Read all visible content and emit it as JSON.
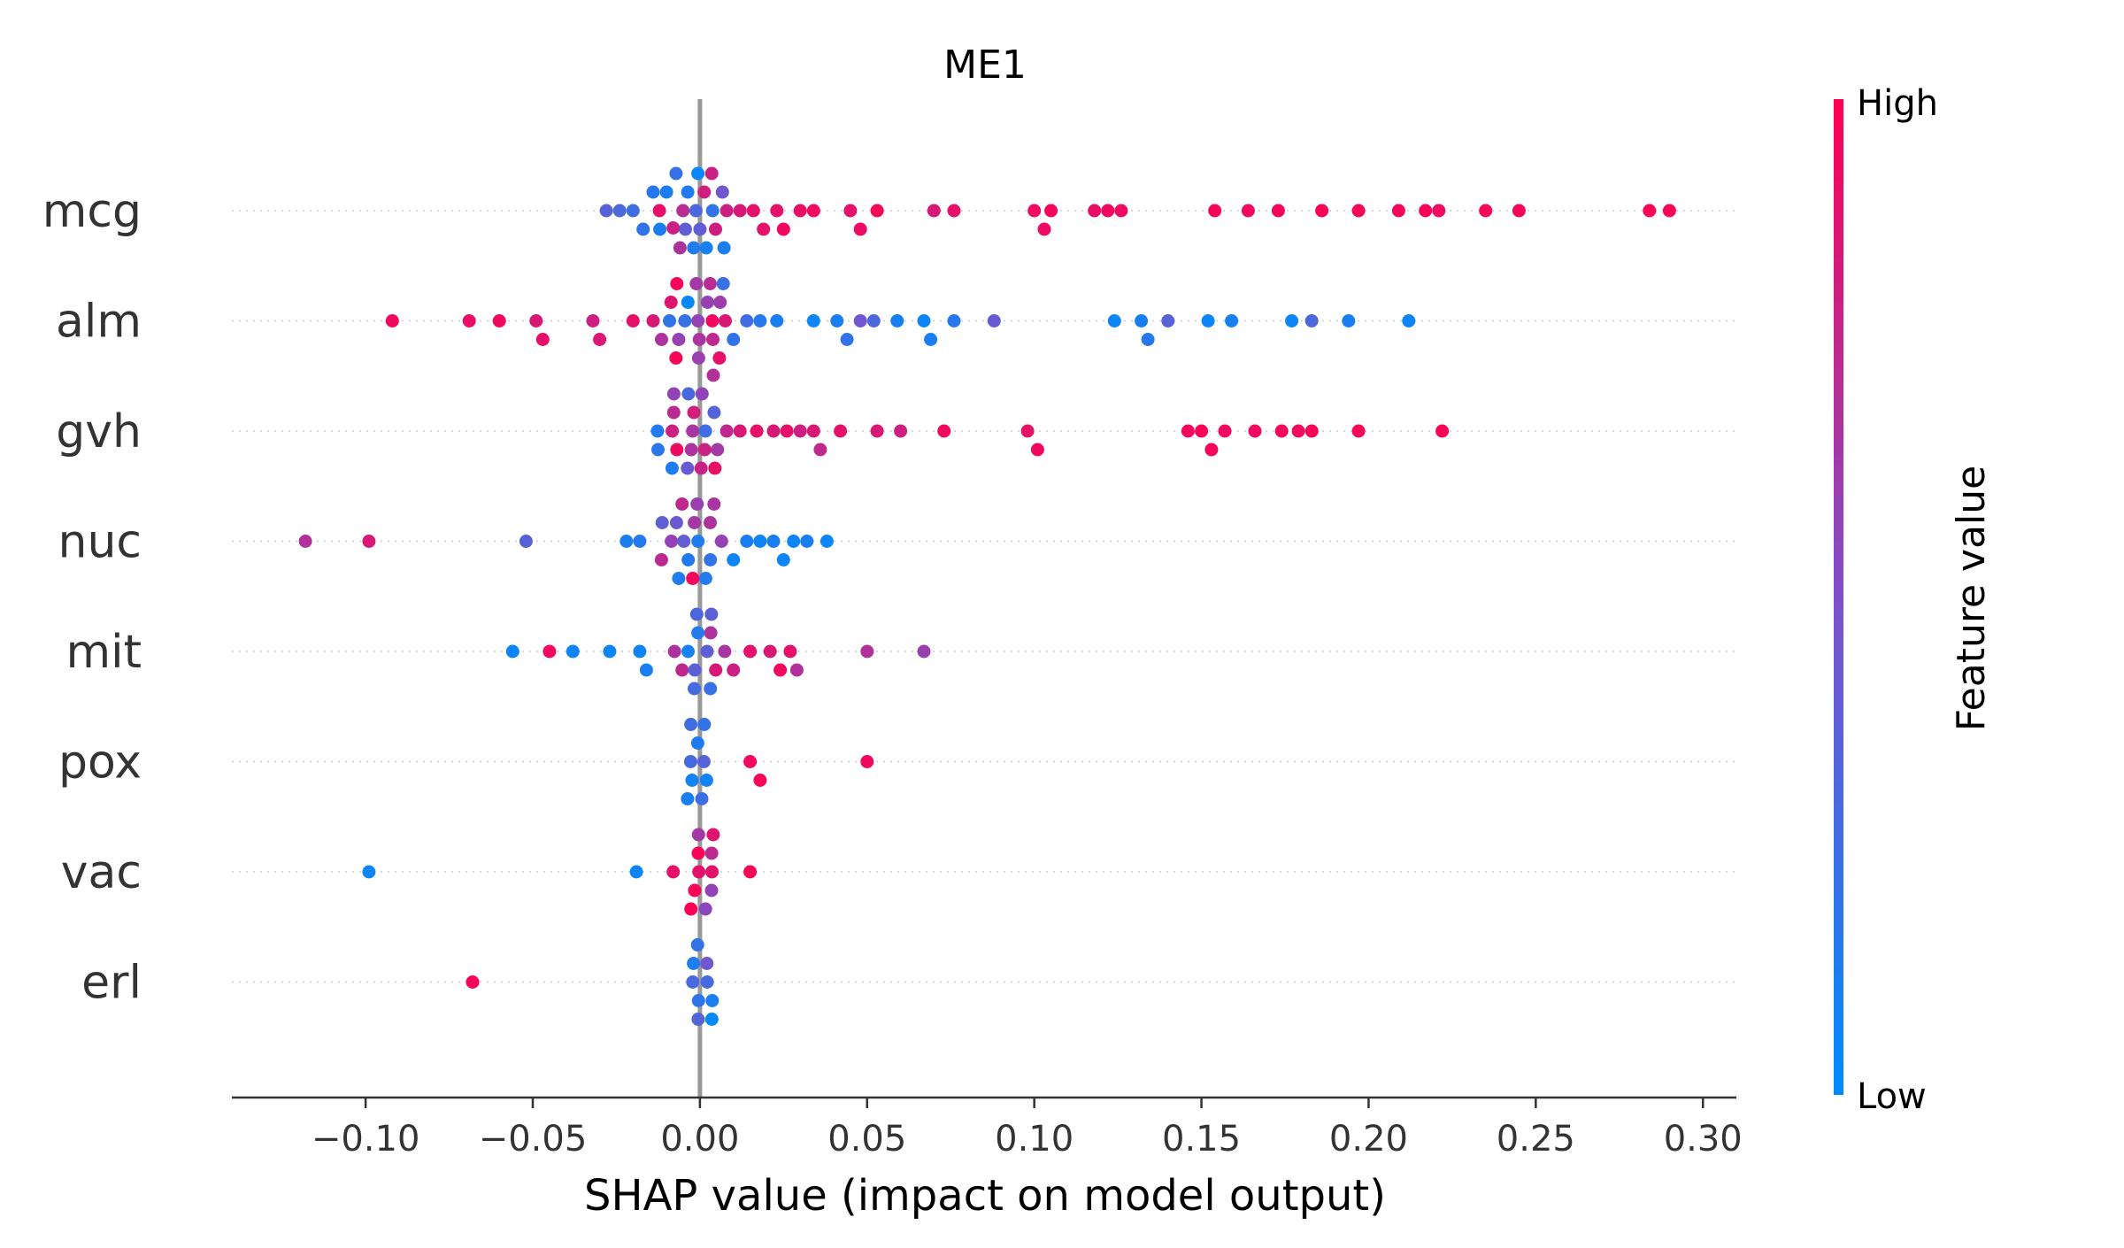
{
  "chart_data": {
    "type": "scatter",
    "subtype": "shap-beeswarm",
    "title": "ME1",
    "xlabel": "SHAP value (impact on model output)",
    "xlim": [
      -0.14,
      0.31
    ],
    "xticks": [
      -0.1,
      -0.05,
      0.0,
      0.05,
      0.1,
      0.15,
      0.2,
      0.25,
      0.3
    ],
    "xtick_labels": [
      "−0.10",
      "−0.05",
      "0.00",
      "0.05",
      "0.10",
      "0.15",
      "0.20",
      "0.25",
      "0.30"
    ],
    "features": [
      "mcg",
      "alm",
      "gvh",
      "nuc",
      "mit",
      "pox",
      "vac",
      "erl"
    ],
    "colorbar": {
      "title": "Feature value",
      "high_label": "High",
      "low_label": "Low",
      "low_color": "#008bfb",
      "mid_color": "#7e50c8",
      "high_color": "#ff0052"
    },
    "zero_line_color": "#999999",
    "series": [
      {
        "feature": "mcg",
        "points": [
          [
            0.023,
            0.9
          ],
          [
            0.025,
            0.95
          ],
          [
            0.03,
            0.92
          ],
          [
            0.034,
            0.95
          ],
          [
            0.045,
            0.9
          ],
          [
            0.048,
            0.93
          ],
          [
            0.053,
            0.97
          ],
          [
            0.07,
            0.85
          ],
          [
            0.076,
            0.9
          ],
          [
            0.1,
            0.95
          ],
          [
            0.103,
            0.93
          ],
          [
            0.105,
            0.96
          ],
          [
            0.118,
            0.92
          ],
          [
            0.122,
            0.95
          ],
          [
            0.126,
            0.93
          ],
          [
            0.154,
            0.97
          ],
          [
            0.164,
            0.95
          ],
          [
            0.173,
            0.96
          ],
          [
            0.186,
            0.98
          ],
          [
            0.197,
            0.97
          ],
          [
            0.209,
            0.96
          ],
          [
            0.217,
            0.98
          ],
          [
            0.221,
            0.95
          ],
          [
            0.235,
            0.97
          ],
          [
            0.245,
            0.96
          ],
          [
            0.284,
            0.98
          ],
          [
            0.29,
            0.97
          ],
          [
            0.008,
            0.8
          ],
          [
            0.012,
            0.85
          ],
          [
            0.016,
            0.9
          ],
          [
            0.019,
            0.9
          ],
          [
            -0.028,
            0.35
          ],
          [
            -0.024,
            0.3
          ],
          [
            -0.02,
            0.25
          ],
          [
            -0.017,
            0.2
          ],
          [
            -0.014,
            0.15
          ],
          [
            -0.012,
            0.1
          ],
          [
            -0.01,
            0.1
          ]
        ],
        "cluster": {
          "center": -0.002,
          "spread": 0.012,
          "mix": 0.35
        }
      },
      {
        "feature": "alm",
        "points": [
          [
            -0.092,
            0.95
          ],
          [
            -0.069,
            0.92
          ],
          [
            -0.06,
            0.95
          ],
          [
            -0.049,
            0.85
          ],
          [
            -0.047,
            0.9
          ],
          [
            -0.032,
            0.8
          ],
          [
            -0.03,
            0.85
          ],
          [
            -0.02,
            0.9
          ],
          [
            -0.014,
            0.85
          ],
          [
            -0.008,
            0.8
          ],
          [
            0.01,
            0.2
          ],
          [
            0.014,
            0.25
          ],
          [
            0.018,
            0.15
          ],
          [
            0.023,
            0.1
          ],
          [
            0.034,
            0.05
          ],
          [
            0.041,
            0.1
          ],
          [
            0.044,
            0.2
          ],
          [
            0.048,
            0.45
          ],
          [
            0.052,
            0.3
          ],
          [
            0.059,
            0.1
          ],
          [
            0.067,
            0.05
          ],
          [
            0.069,
            0.1
          ],
          [
            0.076,
            0.15
          ],
          [
            0.088,
            0.4
          ],
          [
            0.124,
            0.05
          ],
          [
            0.132,
            0.1
          ],
          [
            0.134,
            0.15
          ],
          [
            0.14,
            0.35
          ],
          [
            0.152,
            0.05
          ],
          [
            0.159,
            0.1
          ],
          [
            0.177,
            0.05
          ],
          [
            0.183,
            0.3
          ],
          [
            0.194,
            0.1
          ],
          [
            0.212,
            0.05
          ]
        ],
        "cluster": {
          "center": -0.003,
          "spread": 0.012,
          "mix": 0.7
        }
      },
      {
        "feature": "gvh",
        "points": [
          [
            0.012,
            0.85
          ],
          [
            0.017,
            0.9
          ],
          [
            0.022,
            0.85
          ],
          [
            0.026,
            0.9
          ],
          [
            0.03,
            0.8
          ],
          [
            0.034,
            0.85
          ],
          [
            0.036,
            0.75
          ],
          [
            0.042,
            0.9
          ],
          [
            0.053,
            0.85
          ],
          [
            0.06,
            0.8
          ],
          [
            0.073,
            0.95
          ],
          [
            0.098,
            0.9
          ],
          [
            0.101,
            0.95
          ],
          [
            0.146,
            0.95
          ],
          [
            0.15,
            0.98
          ],
          [
            0.153,
            0.97
          ],
          [
            0.157,
            0.95
          ],
          [
            0.166,
            0.95
          ],
          [
            0.174,
            0.97
          ],
          [
            0.179,
            0.94
          ],
          [
            0.183,
            0.98
          ],
          [
            0.197,
            0.97
          ],
          [
            0.222,
            0.98
          ],
          [
            0.004,
            0.7
          ],
          [
            0.008,
            0.75
          ]
        ],
        "cluster": {
          "center": -0.004,
          "spread": 0.011,
          "mix": 0.35
        }
      },
      {
        "feature": "nuc",
        "points": [
          [
            -0.118,
            0.7
          ],
          [
            -0.099,
            0.85
          ],
          [
            -0.052,
            0.35
          ],
          [
            -0.022,
            0.1
          ],
          [
            -0.018,
            0.15
          ],
          [
            0.01,
            0.05
          ],
          [
            0.014,
            0.1
          ],
          [
            0.018,
            0.05
          ],
          [
            0.022,
            0.1
          ],
          [
            0.025,
            0.05
          ],
          [
            0.028,
            0.05
          ],
          [
            0.032,
            0.1
          ],
          [
            0.038,
            0.05
          ]
        ],
        "cluster": {
          "center": -0.002,
          "spread": 0.01,
          "mix": 0.55
        }
      },
      {
        "feature": "mit",
        "points": [
          [
            -0.056,
            0.05
          ],
          [
            -0.045,
            0.95
          ],
          [
            -0.038,
            0.05
          ],
          [
            -0.027,
            0.05
          ],
          [
            -0.018,
            0.05
          ],
          [
            -0.016,
            0.1
          ],
          [
            0.01,
            0.8
          ],
          [
            0.015,
            0.9
          ],
          [
            0.021,
            0.85
          ],
          [
            0.024,
            0.95
          ],
          [
            0.027,
            0.9
          ],
          [
            0.029,
            0.7
          ],
          [
            0.05,
            0.7
          ],
          [
            0.067,
            0.6
          ]
        ],
        "cluster": {
          "center": 0.0,
          "spread": 0.008,
          "mix": 0.5
        }
      },
      {
        "feature": "pox",
        "points": [
          [
            0.015,
            0.95
          ],
          [
            0.018,
            0.97
          ],
          [
            0.05,
            0.95
          ]
        ],
        "cluster": {
          "center": -0.001,
          "spread": 0.004,
          "mix": 0.0
        }
      },
      {
        "feature": "vac",
        "points": [
          [
            -0.099,
            0.05
          ],
          [
            -0.019,
            0.05
          ],
          [
            -0.008,
            0.9
          ],
          [
            0.015,
            0.97
          ]
        ],
        "cluster": {
          "center": 0.0,
          "spread": 0.005,
          "mix": 0.85
        }
      },
      {
        "feature": "erl",
        "points": [
          [
            -0.068,
            0.97
          ]
        ],
        "cluster": {
          "center": 0.0,
          "spread": 0.004,
          "mix": 0.0
        }
      }
    ]
  }
}
